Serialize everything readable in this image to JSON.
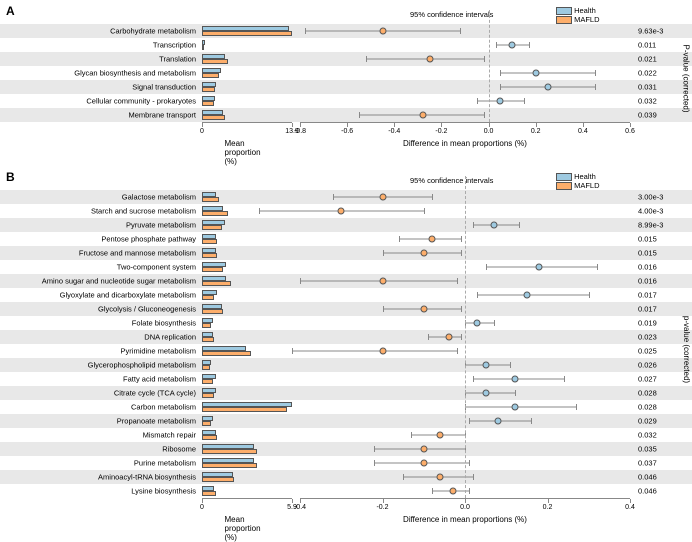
{
  "colors": {
    "health": "#9ecae1",
    "mafld": "#fdae6b",
    "shade": "#e8e8e8",
    "axis": "#888888"
  },
  "legend": {
    "health": "Health",
    "mafld": "MAFLD",
    "ci": "95% confidence intervals"
  },
  "axis_labels": {
    "mean": "Mean proportion (%)",
    "diff": "Difference in mean proportions (%)",
    "pval": "P-value (corrected)",
    "pval_lc": "p-value (corrected)"
  },
  "panelA": {
    "label": "A",
    "bar_max_label": "13.9",
    "diff_ticks": [
      -0.8,
      -0.6,
      -0.4,
      -0.2,
      0.0,
      0.2,
      0.4,
      0.6
    ],
    "bar_max": 13.9,
    "rows": [
      {
        "label": "Carbohydrate metabolism",
        "health": 13.5,
        "mafld": 13.9,
        "diff": -0.45,
        "lo": -0.78,
        "hi": -0.12,
        "group": "mafld",
        "pval": "9.63e-3"
      },
      {
        "label": "Transcription",
        "health": 0.4,
        "mafld": 0.3,
        "diff": 0.1,
        "lo": 0.03,
        "hi": 0.17,
        "group": "health",
        "pval": "0.011"
      },
      {
        "label": "Translation",
        "health": 3.5,
        "mafld": 4.0,
        "diff": -0.25,
        "lo": -0.52,
        "hi": -0.02,
        "group": "mafld",
        "pval": "0.021"
      },
      {
        "label": "Glycan biosynthesis and metabolism",
        "health": 3.0,
        "mafld": 2.6,
        "diff": 0.2,
        "lo": 0.05,
        "hi": 0.45,
        "group": "health",
        "pval": "0.022"
      },
      {
        "label": "Signal transduction",
        "health": 2.2,
        "mafld": 2.0,
        "diff": 0.25,
        "lo": 0.05,
        "hi": 0.45,
        "group": "health",
        "pval": "0.031"
      },
      {
        "label": "Cellular community - prokaryotes",
        "health": 2.0,
        "mafld": 1.8,
        "diff": 0.05,
        "lo": -0.05,
        "hi": 0.15,
        "group": "health",
        "pval": "0.032"
      },
      {
        "label": "Membrane transport",
        "health": 3.2,
        "mafld": 3.5,
        "diff": -0.28,
        "lo": -0.55,
        "hi": -0.02,
        "group": "mafld",
        "pval": "0.039"
      }
    ]
  },
  "panelB": {
    "label": "B",
    "bar_max_label": "5.9",
    "diff_ticks": [
      -0.4,
      -0.2,
      0.0,
      0.2,
      0.4
    ],
    "bar_max": 5.9,
    "rows": [
      {
        "label": "Galactose metabolism",
        "health": 0.9,
        "mafld": 1.1,
        "diff": -0.2,
        "lo": -0.32,
        "hi": -0.08,
        "group": "mafld",
        "pval": "3.00e-3"
      },
      {
        "label": "Starch and sucrose metabolism",
        "health": 1.4,
        "mafld": 1.7,
        "diff": -0.3,
        "lo": -0.5,
        "hi": -0.1,
        "group": "mafld",
        "pval": "4.00e-3"
      },
      {
        "label": "Pyruvate metabolism",
        "health": 1.5,
        "mafld": 1.3,
        "diff": 0.07,
        "lo": 0.02,
        "hi": 0.13,
        "group": "health",
        "pval": "8.99e-3"
      },
      {
        "label": "Pentose phosphate pathway",
        "health": 0.9,
        "mafld": 1.0,
        "diff": -0.08,
        "lo": -0.16,
        "hi": -0.01,
        "group": "mafld",
        "pval": "0.015"
      },
      {
        "label": "Fructose and mannose metabolism",
        "health": 0.9,
        "mafld": 1.0,
        "diff": -0.1,
        "lo": -0.2,
        "hi": -0.01,
        "group": "mafld",
        "pval": "0.015"
      },
      {
        "label": "Two-component system",
        "health": 1.6,
        "mafld": 1.4,
        "diff": 0.18,
        "lo": 0.05,
        "hi": 0.32,
        "group": "health",
        "pval": "0.016"
      },
      {
        "label": "Amino sugar and nucleotide sugar metabolism",
        "health": 1.6,
        "mafld": 1.9,
        "diff": -0.2,
        "lo": -0.4,
        "hi": -0.02,
        "group": "mafld",
        "pval": "0.016"
      },
      {
        "label": "Glyoxylate and dicarboxylate metabolism",
        "health": 1.0,
        "mafld": 0.8,
        "diff": 0.15,
        "lo": 0.03,
        "hi": 0.3,
        "group": "health",
        "pval": "0.017"
      },
      {
        "label": "Glycolysis / Gluconeogenesis",
        "health": 1.3,
        "mafld": 1.4,
        "diff": -0.1,
        "lo": -0.2,
        "hi": -0.01,
        "group": "mafld",
        "pval": "0.017"
      },
      {
        "label": "Folate biosynthesis",
        "health": 0.7,
        "mafld": 0.6,
        "diff": 0.03,
        "lo": 0.0,
        "hi": 0.07,
        "group": "health",
        "pval": "0.019"
      },
      {
        "label": "DNA replication",
        "health": 0.7,
        "mafld": 0.8,
        "diff": -0.04,
        "lo": -0.09,
        "hi": -0.01,
        "group": "mafld",
        "pval": "0.023"
      },
      {
        "label": "Pyrimidine metabolism",
        "health": 2.9,
        "mafld": 3.2,
        "diff": -0.2,
        "lo": -0.42,
        "hi": -0.02,
        "group": "mafld",
        "pval": "0.025"
      },
      {
        "label": "Glycerophospholipid metabolism",
        "health": 0.6,
        "mafld": 0.5,
        "diff": 0.05,
        "lo": 0.0,
        "hi": 0.11,
        "group": "health",
        "pval": "0.026"
      },
      {
        "label": "Fatty acid metabolism",
        "health": 0.9,
        "mafld": 0.7,
        "diff": 0.12,
        "lo": 0.02,
        "hi": 0.24,
        "group": "health",
        "pval": "0.027"
      },
      {
        "label": "Citrate cycle (TCA cycle)",
        "health": 0.9,
        "mafld": 0.8,
        "diff": 0.05,
        "lo": 0.0,
        "hi": 0.12,
        "group": "health",
        "pval": "0.028"
      },
      {
        "label": "Carbon metabolism",
        "health": 5.9,
        "mafld": 5.6,
        "diff": 0.12,
        "lo": 0.0,
        "hi": 0.27,
        "group": "health",
        "pval": "0.028"
      },
      {
        "label": "Propanoate metabolism",
        "health": 0.7,
        "mafld": 0.6,
        "diff": 0.08,
        "lo": 0.01,
        "hi": 0.16,
        "group": "health",
        "pval": "0.029"
      },
      {
        "label": "Mismatch repair",
        "health": 0.9,
        "mafld": 1.0,
        "diff": -0.06,
        "lo": -0.13,
        "hi": 0.0,
        "group": "mafld",
        "pval": "0.032"
      },
      {
        "label": "Ribosome",
        "health": 3.4,
        "mafld": 3.6,
        "diff": -0.1,
        "lo": -0.22,
        "hi": 0.0,
        "group": "mafld",
        "pval": "0.035"
      },
      {
        "label": "Purine metabolism",
        "health": 3.4,
        "mafld": 3.6,
        "diff": -0.1,
        "lo": -0.22,
        "hi": 0.01,
        "group": "mafld",
        "pval": "0.037"
      },
      {
        "label": "Aminoacyl-tRNA biosynthesis",
        "health": 2.0,
        "mafld": 2.1,
        "diff": -0.06,
        "lo": -0.15,
        "hi": 0.02,
        "group": "mafld",
        "pval": "0.046"
      },
      {
        "label": "Lysine biosynthesis",
        "health": 0.8,
        "mafld": 0.9,
        "diff": -0.03,
        "lo": -0.08,
        "hi": 0.01,
        "group": "mafld",
        "pval": "0.046"
      }
    ]
  }
}
